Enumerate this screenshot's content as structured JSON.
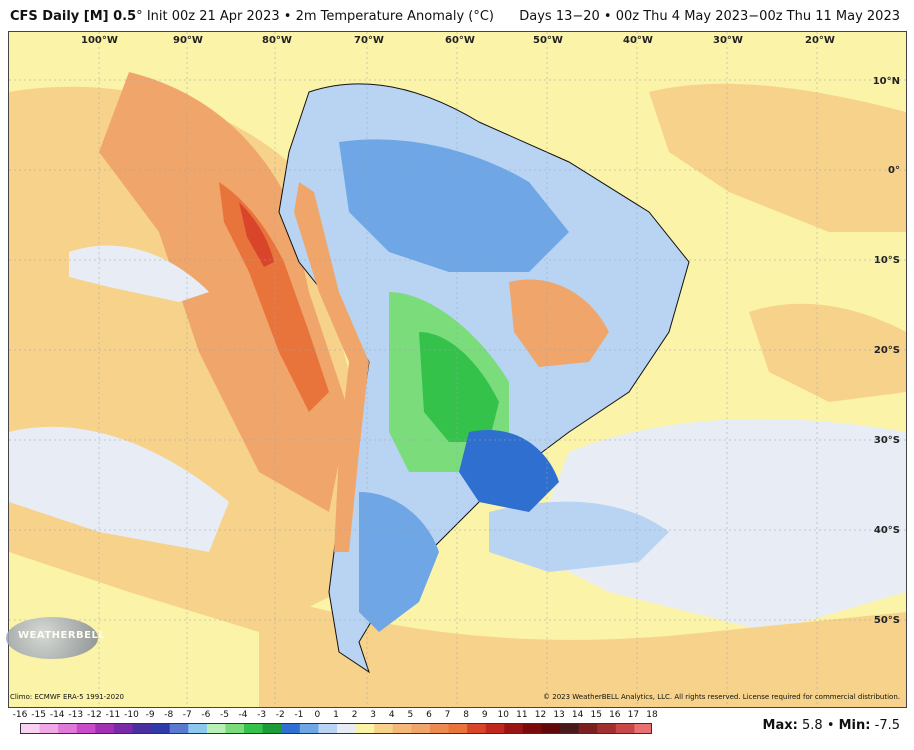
{
  "header": {
    "model": "CFS Daily [M] 0.5",
    "degree": "°",
    "init": "Init 00z 21 Apr 2023",
    "bullet1": "•",
    "field": "2m Temperature Anomaly (°C)",
    "valid": "Days 13−20 • 00z Thu 4 May 2023−00z Thu 11 May 2023"
  },
  "map": {
    "lon_labels": [
      "100°W",
      "90°W",
      "80°W",
      "70°W",
      "60°W",
      "50°W",
      "40°W",
      "30°W",
      "20°W"
    ],
    "lat_labels": [
      "10°N",
      "0°",
      "10°S",
      "20°S",
      "30°S",
      "40°S",
      "50°S"
    ],
    "colors": {
      "ocean_neutral": "#fbf3a8",
      "warm_light": "#f7d28a",
      "warm_mid": "#f0a66a",
      "warm_strong": "#e8743c",
      "warm_peak": "#d9452a",
      "cool_faint": "#e8ecf4",
      "cool_light": "#b8d4f2",
      "cool_mid": "#6fa6e6",
      "cool_strong": "#2f6fd0",
      "green_light": "#7bdc7b",
      "green_mid": "#35c24a",
      "coast": "#111111"
    }
  },
  "logo": {
    "text": "WEATHERBELL"
  },
  "footer": {
    "climo": "Climo: ECMWF ERA-5 1991-2020",
    "copyright": "© 2023 WeatherBELL Analytics, LLC. All rights reserved. License required for commercial distribution."
  },
  "legend": {
    "labels": [
      "-16",
      "-15",
      "-14",
      "-13",
      "-12",
      "-11",
      "-10",
      "-9",
      "-8",
      "-7",
      "-6",
      "-5",
      "-4",
      "-3",
      "-2",
      "-1",
      "0",
      "1",
      "2",
      "3",
      "4",
      "5",
      "6",
      "7",
      "8",
      "9",
      "10",
      "11",
      "12",
      "13",
      "14",
      "15",
      "16",
      "17",
      "18"
    ],
    "colors": [
      "#f8d2f0",
      "#f0a8e6",
      "#e07ad8",
      "#c84cc8",
      "#a32fb4",
      "#7a2aa8",
      "#4a2fa0",
      "#2e3aa8",
      "#5a7ad0",
      "#8dc8ee",
      "#b8f0b8",
      "#7bdc7b",
      "#35c24a",
      "#1b9c36",
      "#2f6fd0",
      "#6fa6e6",
      "#b8d4f2",
      "#e8ecf4",
      "#fbf3a8",
      "#f7d28a",
      "#f5b878",
      "#f0a66a",
      "#ec8a52",
      "#e8743c",
      "#d9452a",
      "#c0281e",
      "#9a1414",
      "#7a0a0a",
      "#600808",
      "#4a1a1a",
      "#7a2020",
      "#a03030",
      "#c84848",
      "#e87070"
    ]
  },
  "stats": {
    "max_label": "Max:",
    "max_value": "5.8",
    "sep": "•",
    "min_label": "Min:",
    "min_value": "-7.5"
  }
}
